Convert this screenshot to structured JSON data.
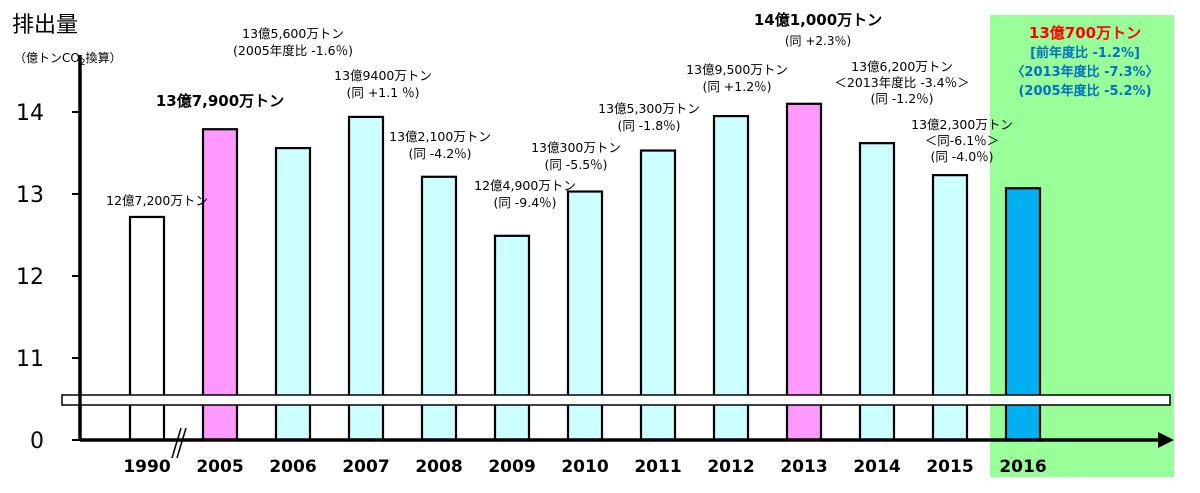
{
  "chart_data": {
    "type": "bar",
    "title": "排出量",
    "unit_prefix": "（",
    "unit_main": "億トンCO",
    "unit_sub": "2",
    "unit_suffix": "換算）",
    "categories": [
      "1990",
      "2005",
      "2006",
      "2007",
      "2008",
      "2009",
      "2010",
      "2011",
      "2012",
      "2013",
      "2014",
      "2015",
      "2016"
    ],
    "values": [
      12.72,
      13.79,
      13.56,
      13.94,
      13.21,
      12.49,
      13.03,
      13.53,
      13.95,
      14.1,
      13.62,
      13.23,
      13.07
    ],
    "y_ticks": [
      "0",
      "11",
      "12",
      "13",
      "14"
    ],
    "ylim": [
      11,
      14.5
    ],
    "axis_break": true,
    "colors": {
      "default": "#ccffff",
      "1990": "#ffffff",
      "2005": "#ff99ff",
      "2013": "#ff99ff",
      "2016": "#00b0f0",
      "highlight_bg": "#99ff99",
      "highlight_title": "#ff0000",
      "highlight_sub": "#0070c0"
    },
    "annotations": [
      {
        "category": "1990",
        "lines": [
          "12億7,200万トン"
        ],
        "bold": false
      },
      {
        "category": "2005",
        "lines": [
          "13億7,900万トン"
        ],
        "bold": true
      },
      {
        "category": "2006",
        "lines": [
          "13億5,600万トン",
          "(2005年度比 -1.6％)"
        ],
        "bold": false
      },
      {
        "category": "2007",
        "lines": [
          "13億9400万トン",
          "(同 +1.1 ％)"
        ],
        "bold": false
      },
      {
        "category": "2008",
        "lines": [
          "13億2,100万トン",
          "(同 -4.2％)"
        ],
        "bold": false
      },
      {
        "category": "2009",
        "lines": [
          "12億4,900万トン",
          "(同 -9.4％)"
        ],
        "bold": false
      },
      {
        "category": "2010",
        "lines": [
          "13億300万トン",
          "(同 -5.5％)"
        ],
        "bold": false
      },
      {
        "category": "2011",
        "lines": [
          "13億5,300万トン",
          "(同 -1.8％)"
        ],
        "bold": false
      },
      {
        "category": "2012",
        "lines": [
          "13億9,500万トン",
          "(同 +1.2％)"
        ],
        "bold": false
      },
      {
        "category": "2013",
        "lines": [
          "14億1,000万トン",
          "(同 +2.3％)"
        ],
        "bold": true
      },
      {
        "category": "2014",
        "lines": [
          "13億6,200万トン",
          "＜2013年度比 -3.4％＞",
          "(同 -1.2％)"
        ],
        "bold": false
      },
      {
        "category": "2015",
        "lines": [
          "13億2,300万トン",
          "＜同-6.1％＞",
          "(同 -4.0％)"
        ],
        "bold": false
      },
      {
        "category": "2016",
        "lines": [
          "13億700万トン",
          "[前年度比 -1.2%]",
          "〈2013年度比 -7.3%〉",
          "(2005年度比 -5.2%)"
        ],
        "bold": true
      }
    ]
  }
}
